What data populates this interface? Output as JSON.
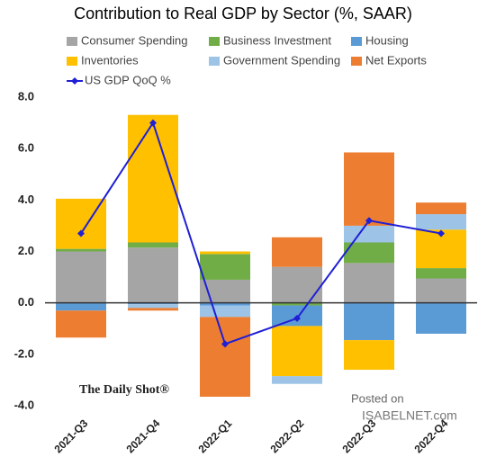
{
  "chart_data": {
    "type": "bar",
    "stacked": true,
    "title": "Contribution to Real GDP by Sector (%, SAAR)",
    "categories": [
      "2021-Q3",
      "2021-Q4",
      "2022-Q1",
      "2022-Q2",
      "2022-Q3",
      "2022-Q4"
    ],
    "series": [
      {
        "name": "Consumer Spending",
        "color": "#a5a5a5",
        "values": [
          2.0,
          2.15,
          0.9,
          1.4,
          1.55,
          0.95
        ]
      },
      {
        "name": "Business Investment",
        "color": "#70ad47",
        "values": [
          0.1,
          0.2,
          1.0,
          -0.1,
          0.8,
          0.4
        ]
      },
      {
        "name": "Housing",
        "color": "#5b9bd5",
        "values": [
          -0.3,
          -0.05,
          -0.1,
          -0.8,
          -1.45,
          -1.2
        ]
      },
      {
        "name": "Inventories",
        "color": "#ffc000",
        "values": [
          1.95,
          4.96,
          0.1,
          -1.95,
          -1.15,
          1.5
        ]
      },
      {
        "name": "Government Spending",
        "color": "#9dc3e6",
        "values": [
          0,
          -0.15,
          -0.45,
          -0.3,
          0.65,
          0.6
        ]
      },
      {
        "name": "Net Exports",
        "color": "#ed7d31",
        "values": [
          -1.05,
          -0.1,
          -3.1,
          1.15,
          2.85,
          0.45
        ]
      },
      {
        "name": "US GDP QoQ %",
        "type": "line",
        "color": "#1f1fd6",
        "values": [
          2.7,
          7.0,
          -1.6,
          -0.6,
          3.2,
          2.7
        ]
      }
    ],
    "ylim": [
      -4,
      8
    ],
    "yticks": [
      {
        "value": -4,
        "label": "-4.0"
      },
      {
        "value": -2,
        "label": "-2.0"
      },
      {
        "value": 0,
        "label": "0.0"
      },
      {
        "value": 2,
        "label": "2.0"
      },
      {
        "value": 4,
        "label": "4.0"
      },
      {
        "value": 6,
        "label": "6.0"
      },
      {
        "value": 8,
        "label": "8.0"
      }
    ],
    "grid": false,
    "annotations": [
      "The Daily Shot®",
      "Posted on",
      "ISABELNET.com"
    ]
  }
}
